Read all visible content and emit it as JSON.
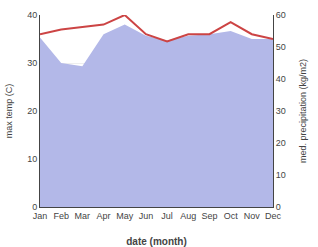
{
  "chart_data": {
    "type": "line",
    "x_label": "date (month)",
    "y_label": "max temp (C)",
    "y2_label": "med. precipitation (kg/m2)",
    "categories": [
      "Jan",
      "Feb",
      "Mar",
      "Apr",
      "May",
      "Jun",
      "Jul",
      "Aug",
      "Sep",
      "Oct",
      "Nov",
      "Dec"
    ],
    "series": [
      {
        "type": "area",
        "axis": "y2",
        "color": "#b3b8e8",
        "values": [
          53.0,
          45.0,
          44.0,
          54.0,
          57.0,
          53.5,
          52.0,
          53.5,
          54.0,
          55.0,
          52.5,
          52.5
        ]
      },
      {
        "type": "line",
        "color": "#cc4444",
        "values": [
          36.0,
          37.0,
          37.5,
          38.0,
          40.0,
          36.0,
          34.5,
          36.0,
          36.0,
          38.5,
          36.0,
          35.0
        ]
      }
    ],
    "ylim": [
      0,
      40
    ],
    "yticks": [
      0,
      10,
      20,
      30,
      40
    ],
    "y2lim": [
      0,
      60
    ],
    "y2ticks": [
      0,
      10,
      20,
      30,
      40,
      50,
      60
    ],
    "grid": true
  }
}
